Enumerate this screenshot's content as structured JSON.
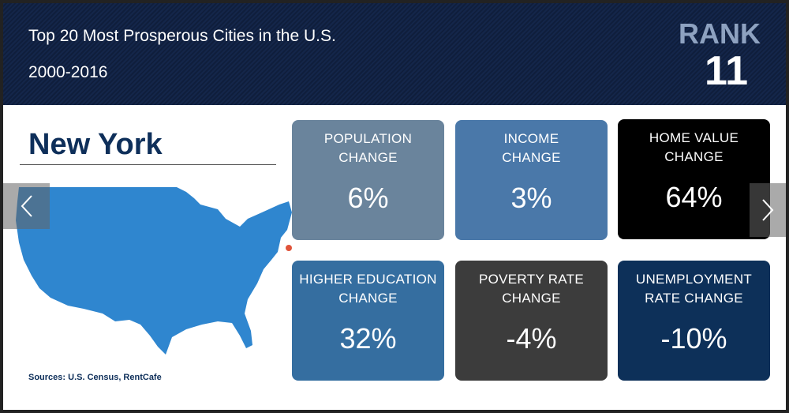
{
  "header": {
    "title": "Top 20 Most Prosperous Cities in the U.S.",
    "years": "2000-2016",
    "rank_label": "RANK",
    "rank_value": "11"
  },
  "city": "New York",
  "sources": "Sources: U.S. Census, RentCafe",
  "map": {
    "fill": "#2f86cf",
    "marker": "#e0533a"
  },
  "cards": [
    {
      "label1": "POPULATION",
      "label2": "CHANGE",
      "value": "6%",
      "color": "#6a849c"
    },
    {
      "label1": "INCOME",
      "label2": "CHANGE",
      "value": "3%",
      "color": "#4a78a9"
    },
    {
      "label1": "HOME VALUE",
      "label2": "CHANGE",
      "value": "64%",
      "color": "#000000"
    },
    {
      "label1": "HIGHER EDUCATION",
      "label2": "CHANGE",
      "value": "32%",
      "color": "#356ea0"
    },
    {
      "label1": "POVERTY RATE",
      "label2": "CHANGE",
      "value": "-4%",
      "color": "#3c3c3c"
    },
    {
      "label1": "UNEMPLOYMENT",
      "label2": "RATE CHANGE",
      "value": "-10%",
      "color": "#0d3059"
    }
  ],
  "nav": {
    "prev_icon": "chevron-left-icon",
    "next_icon": "chevron-right-icon"
  }
}
